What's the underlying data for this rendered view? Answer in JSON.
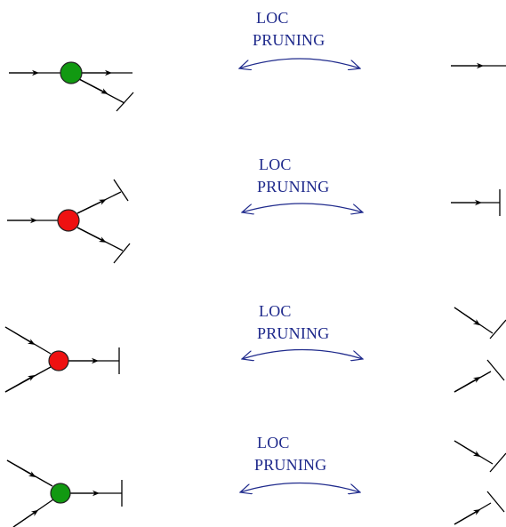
{
  "colors": {
    "line": "#000000",
    "label": "#1f2a8c",
    "arrow": "#1f2a8c",
    "node_green": "#119911",
    "node_red": "#ee1111",
    "node_outline": "#222222",
    "background": "#ffffff"
  },
  "rows": [
    {
      "label_line1": "LOC",
      "label_line2": "PRUNING",
      "node_color": "green"
    },
    {
      "label_line1": "LOC",
      "label_line2": "PRUNING",
      "node_color": "red"
    },
    {
      "label_line1": "LOC",
      "label_line2": "PRUNING",
      "node_color": "red"
    },
    {
      "label_line1": "LOC",
      "label_line2": "PRUNING",
      "node_color": "green"
    }
  ]
}
